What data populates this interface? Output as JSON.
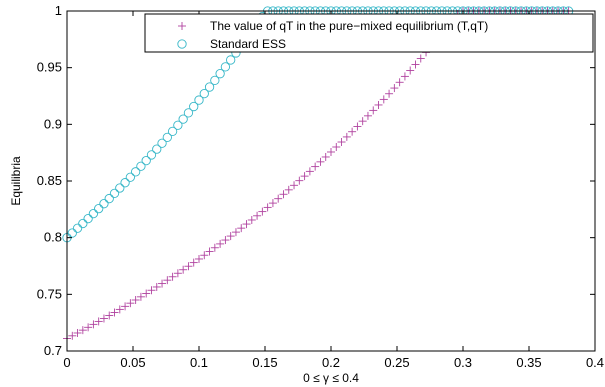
{
  "chart_data": {
    "type": "scatter",
    "title": "",
    "xlabel": "0 ≤ γ ≤ 0.4",
    "ylabel": "Equilibria",
    "xlim": [
      0,
      0.4
    ],
    "ylim": [
      0.7,
      1.0
    ],
    "xticks": [
      "0",
      "0.05",
      "0.1",
      "0.15",
      "0.2",
      "0.25",
      "0.3",
      "0.35",
      "0.4"
    ],
    "yticks": [
      "0.7",
      "0.75",
      "0.8",
      "0.85",
      "0.9",
      "0.95",
      "1"
    ],
    "grid": false,
    "legend_position": "top-right",
    "colors": {
      "qT": "#b0429f",
      "ess": "#37b7c8"
    },
    "series": [
      {
        "name": "The value of qT in the pure−mixed equilibrium (T,qT)",
        "marker": "plus",
        "x": [
          0,
          0.004,
          0.008,
          0.012,
          0.016,
          0.02,
          0.024,
          0.028,
          0.032,
          0.036,
          0.04,
          0.044,
          0.048,
          0.052,
          0.056,
          0.06,
          0.064,
          0.068,
          0.072,
          0.076,
          0.08,
          0.084,
          0.088,
          0.092,
          0.096,
          0.1,
          0.104,
          0.108,
          0.112,
          0.116,
          0.12,
          0.124,
          0.128,
          0.132,
          0.136,
          0.14,
          0.144,
          0.148,
          0.152,
          0.156,
          0.16,
          0.164,
          0.168,
          0.172,
          0.176,
          0.18,
          0.184,
          0.188,
          0.192,
          0.196,
          0.2,
          0.204,
          0.208,
          0.212,
          0.216,
          0.22,
          0.224,
          0.228,
          0.232,
          0.236,
          0.24,
          0.244,
          0.248,
          0.252,
          0.256,
          0.26,
          0.264,
          0.268,
          0.272,
          0.276,
          0.28,
          0.284,
          0.288,
          0.292,
          0.296,
          0.3,
          0.304,
          0.308,
          0.312,
          0.316,
          0.32,
          0.324,
          0.328,
          0.332,
          0.336,
          0.34,
          0.344,
          0.348,
          0.352,
          0.356,
          0.36,
          0.364,
          0.368,
          0.372,
          0.376,
          0.38
        ],
        "y": [
          0.711,
          0.7134,
          0.7159,
          0.7184,
          0.7209,
          0.7235,
          0.7261,
          0.7287,
          0.7313,
          0.734,
          0.7367,
          0.7394,
          0.7422,
          0.745,
          0.7478,
          0.7507,
          0.7536,
          0.7565,
          0.7595,
          0.7625,
          0.7655,
          0.7686,
          0.7717,
          0.7748,
          0.778,
          0.7812,
          0.7845,
          0.7878,
          0.7911,
          0.7945,
          0.7979,
          0.8014,
          0.8049,
          0.8084,
          0.812,
          0.8156,
          0.8193,
          0.823,
          0.8267,
          0.8305,
          0.8344,
          0.8383,
          0.8422,
          0.8462,
          0.8503,
          0.8543,
          0.8585,
          0.8627,
          0.8669,
          0.8712,
          0.8756,
          0.88,
          0.8844,
          0.8889,
          0.8935,
          0.8981,
          0.9028,
          0.9075,
          0.9123,
          0.9171,
          0.922,
          0.927,
          0.932,
          0.9371,
          0.9423,
          0.9475,
          0.9528,
          0.9581,
          0.9635,
          0.969,
          0.9745,
          0.9801,
          0.9858,
          0.9916,
          0.9974,
          1.0,
          1.0,
          1.0,
          1.0,
          1.0,
          1.0,
          1.0,
          1.0,
          1.0,
          1.0,
          1.0,
          1.0,
          1.0,
          1.0,
          1.0,
          1.0,
          1.0,
          1.0,
          1.0,
          1.0,
          1.0
        ]
      },
      {
        "name": "Standard ESS",
        "marker": "circle",
        "x": [
          0,
          0.004,
          0.008,
          0.012,
          0.016,
          0.02,
          0.024,
          0.028,
          0.032,
          0.036,
          0.04,
          0.044,
          0.048,
          0.052,
          0.056,
          0.06,
          0.064,
          0.068,
          0.072,
          0.076,
          0.08,
          0.084,
          0.088,
          0.092,
          0.096,
          0.1,
          0.104,
          0.108,
          0.112,
          0.116,
          0.12,
          0.124,
          0.128,
          0.132,
          0.136,
          0.14,
          0.144,
          0.148,
          0.152,
          0.156,
          0.16,
          0.164,
          0.168,
          0.172,
          0.176,
          0.18,
          0.184,
          0.188,
          0.192,
          0.196,
          0.2,
          0.204,
          0.208,
          0.212,
          0.216,
          0.22,
          0.224,
          0.228,
          0.232,
          0.236,
          0.24,
          0.244,
          0.248,
          0.252,
          0.256,
          0.26,
          0.264,
          0.268,
          0.272,
          0.276,
          0.28,
          0.284,
          0.288,
          0.292,
          0.296,
          0.3,
          0.304,
          0.308,
          0.312,
          0.316,
          0.32,
          0.324,
          0.328,
          0.332,
          0.336,
          0.34,
          0.344,
          0.348,
          0.352,
          0.356,
          0.36,
          0.364,
          0.368,
          0.372,
          0.376,
          0.38
        ],
        "y": [
          0.8,
          0.8041,
          0.8083,
          0.8125,
          0.8168,
          0.8212,
          0.8256,
          0.83,
          0.8345,
          0.8391,
          0.8438,
          0.8485,
          0.8533,
          0.8581,
          0.863,
          0.868,
          0.873,
          0.8781,
          0.8833,
          0.8885,
          0.8938,
          0.8992,
          0.9046,
          0.9101,
          0.9157,
          0.9214,
          0.9271,
          0.9329,
          0.9388,
          0.9447,
          0.9507,
          0.9568,
          0.963,
          0.9692,
          0.9756,
          0.982,
          0.9885,
          0.995,
          1.0,
          1.0,
          1.0,
          1.0,
          1.0,
          1.0,
          1.0,
          1.0,
          1.0,
          1.0,
          1.0,
          1.0,
          1.0,
          1.0,
          1.0,
          1.0,
          1.0,
          1.0,
          1.0,
          1.0,
          1.0,
          1.0,
          1.0,
          1.0,
          1.0,
          1.0,
          1.0,
          1.0,
          1.0,
          1.0,
          1.0,
          1.0,
          1.0,
          1.0,
          1.0,
          1.0,
          1.0,
          1.0,
          1.0,
          1.0,
          1.0,
          1.0,
          1.0,
          1.0,
          1.0,
          1.0,
          1.0,
          1.0,
          1.0,
          1.0,
          1.0,
          1.0,
          1.0,
          1.0,
          1.0,
          1.0,
          1.0,
          1.0
        ]
      }
    ]
  }
}
